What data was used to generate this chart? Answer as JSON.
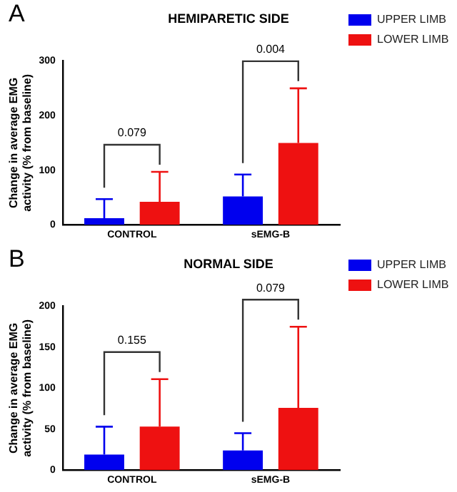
{
  "chart_data": [
    {
      "type": "bar",
      "title": "HEMIPARETIC SIDE",
      "ylabel": "Change in average EMG activity (% from baseline)",
      "categories": [
        "CONTROL",
        "sEMG-B"
      ],
      "series": [
        {
          "name": "UPPER LIMB",
          "color": "#0000ee",
          "values": [
            12,
            52
          ],
          "errors": [
            [
              12,
              47
            ],
            [
              52,
              92
            ]
          ]
        },
        {
          "name": "LOWER LIMB",
          "color": "#ee1111",
          "values": [
            42,
            150
          ],
          "errors": [
            [
              42,
              97
            ],
            [
              150,
              250
            ]
          ]
        }
      ],
      "ylim": [
        0,
        300
      ],
      "yticks": [
        0,
        100,
        200,
        300
      ],
      "legend": "right",
      "annotations": [
        "A",
        "0.079",
        "0.004"
      ]
    },
    {
      "type": "bar",
      "title": "NORMAL SIDE",
      "ylabel": "Change in average EMG activity (% from baseline)",
      "categories": [
        "CONTROL",
        "sEMG-B"
      ],
      "series": [
        {
          "name": "UPPER LIMB",
          "color": "#0000ee",
          "values": [
            19,
            24
          ],
          "errors": [
            [
              19,
              53
            ],
            [
              24,
              45
            ]
          ]
        },
        {
          "name": "LOWER LIMB",
          "color": "#ee1111",
          "values": [
            53,
            76
          ],
          "errors": [
            [
              53,
              111
            ],
            [
              76,
              175
            ]
          ]
        }
      ],
      "ylim": [
        0,
        200
      ],
      "yticks": [
        0,
        50,
        100,
        150,
        200
      ],
      "legend": "right",
      "annotations": [
        "B",
        "0.155",
        "0.079"
      ]
    }
  ]
}
